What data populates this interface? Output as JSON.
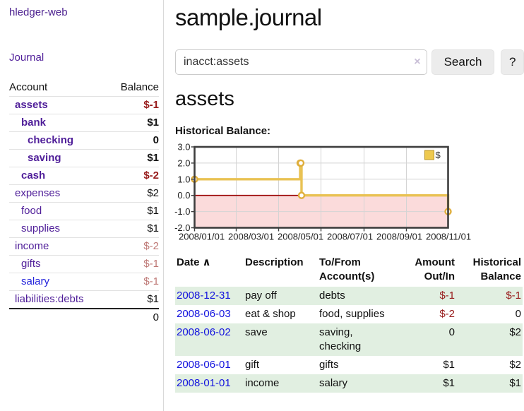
{
  "app": {
    "brand": "hledger-web"
  },
  "sidebar": {
    "nav_journal": "Journal",
    "col_account": "Account",
    "col_balance": "Balance",
    "accounts": [
      {
        "name": "assets",
        "indent": 0,
        "style": "bold",
        "balance": "$-1",
        "bstyle": "negbold"
      },
      {
        "name": "bank",
        "indent": 1,
        "style": "bold",
        "balance": "$1",
        "bstyle": "bold"
      },
      {
        "name": "checking",
        "indent": 2,
        "style": "bold",
        "balance": "0",
        "bstyle": "bold"
      },
      {
        "name": "saving",
        "indent": 2,
        "style": "bold",
        "balance": "$1",
        "bstyle": "bold"
      },
      {
        "name": "cash",
        "indent": 1,
        "style": "bold",
        "balance": "$-2",
        "bstyle": "negbold"
      },
      {
        "name": "expenses",
        "indent": 0,
        "style": "",
        "balance": "$2",
        "bstyle": ""
      },
      {
        "name": "food",
        "indent": 1,
        "style": "",
        "balance": "$1",
        "bstyle": ""
      },
      {
        "name": "supplies",
        "indent": 1,
        "style": "",
        "balance": "$1",
        "bstyle": ""
      },
      {
        "name": "income",
        "indent": 0,
        "style": "",
        "balance": "$-2",
        "bstyle": "negfade"
      },
      {
        "name": "gifts",
        "indent": 1,
        "style": "",
        "balance": "$-1",
        "bstyle": "negfade"
      },
      {
        "name": "salary",
        "indent": 1,
        "style": "blue",
        "balance": "$-1",
        "bstyle": "negfade"
      },
      {
        "name": "liabilities:debts",
        "indent": 0,
        "style": "",
        "balance": "$1",
        "bstyle": ""
      }
    ],
    "total": "0"
  },
  "header": {
    "title": "sample.journal"
  },
  "search": {
    "value": "inacct:assets",
    "clear_icon": "×",
    "button": "Search",
    "help_button": "?"
  },
  "account_page": {
    "heading": "assets",
    "chart_label": "Historical Balance:"
  },
  "chart_data": {
    "type": "line",
    "step": true,
    "title": "Historical Balance",
    "legend": [
      "$"
    ],
    "legend_position": "top-right",
    "x": [
      "2008-01-01",
      "2008-06-01",
      "2008-06-02",
      "2008-06-03",
      "2008-12-31"
    ],
    "values": [
      1,
      2,
      2,
      0,
      -1
    ],
    "x_days": [
      0,
      152,
      153,
      154,
      365
    ],
    "x_range_days": 365,
    "x_ticks": [
      {
        "day": 0,
        "label": "2008/01/01"
      },
      {
        "day": 60,
        "label": "2008/03/01"
      },
      {
        "day": 121,
        "label": "2008/05/01"
      },
      {
        "day": 182,
        "label": "2008/07/01"
      },
      {
        "day": 244,
        "label": "2008/09/01"
      },
      {
        "day": 305,
        "label": "2008/11/01"
      }
    ],
    "y_ticks": [
      3.0,
      2.0,
      1.0,
      0.0,
      -1.0,
      -2.0
    ],
    "ylim": [
      -2,
      3
    ],
    "grid": true,
    "series_color": "#E9C253",
    "marker_stroke": "#DFAE3B",
    "negative_fill": "#FBDBDB",
    "zero_line_color": "#990000",
    "legend_fill": "#EEC94F",
    "legend_border": "#BB9629"
  },
  "journal": {
    "sort_icon": "∧",
    "columns": [
      {
        "l1": "Date",
        "l2": "",
        "align": "left",
        "sort": true
      },
      {
        "l1": "Description",
        "l2": "",
        "align": "left"
      },
      {
        "l1": "To/From",
        "l2": "Account(s)",
        "align": "left"
      },
      {
        "l1": "Amount",
        "l2": "Out/In",
        "align": "right"
      },
      {
        "l1": "Historical",
        "l2": "Balance",
        "align": "right"
      }
    ],
    "rows": [
      {
        "date": "2008-12-31",
        "desc": "pay off",
        "accts": "debts",
        "amount": "$-1",
        "amount_neg": true,
        "balance": "$-1",
        "balance_neg": true
      },
      {
        "date": "2008-06-03",
        "desc": "eat & shop",
        "accts": "food, supplies",
        "amount": "$-2",
        "amount_neg": true,
        "balance": "0",
        "balance_neg": false
      },
      {
        "date": "2008-06-02",
        "desc": "save",
        "accts": "saving,\nchecking",
        "amount": "0",
        "amount_neg": false,
        "balance": "$2",
        "balance_neg": false
      },
      {
        "date": "2008-06-01",
        "desc": "gift",
        "accts": "gifts",
        "amount": "$1",
        "amount_neg": false,
        "balance": "$2",
        "balance_neg": false
      },
      {
        "date": "2008-01-01",
        "desc": "income",
        "accts": "salary",
        "amount": "$1",
        "amount_neg": false,
        "balance": "$1",
        "balance_neg": false
      }
    ]
  },
  "colors": {
    "link_purple": "#4F1E99",
    "brand_purple": "#4B1F8F",
    "link_blue": "#1313DE",
    "negative_red": "#971A1A",
    "faded_red": "#BE7875",
    "row_green": "#E1EFE1",
    "chart_gold": "#E9C253",
    "chart_pink": "#FBDBDB"
  }
}
